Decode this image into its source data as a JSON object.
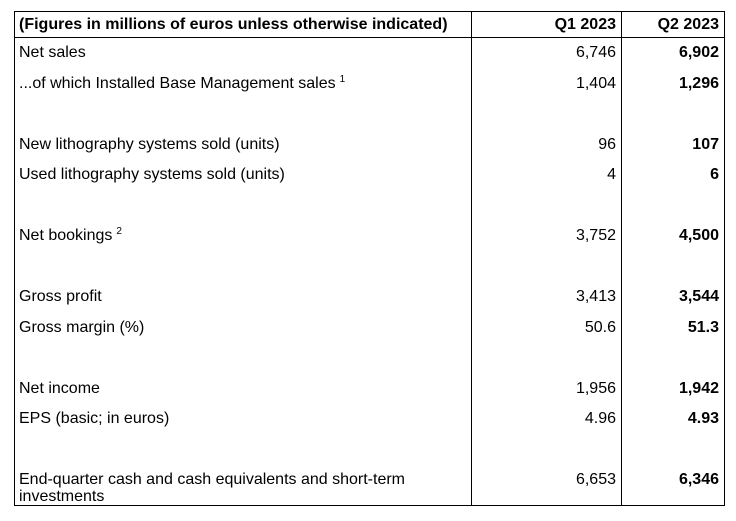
{
  "table": {
    "header": {
      "label": "(Figures in millions of euros unless otherwise indicated)",
      "q1": "Q1 2023",
      "q2": "Q2 2023"
    },
    "rows": [
      {
        "label": "Net sales",
        "footnote": "",
        "q1": "6,746",
        "q2": "6,902"
      },
      {
        "label": "...of which Installed Base Management sales",
        "footnote": "1",
        "q1": "1,404",
        "q2": "1,296"
      },
      {
        "label": "New lithography systems sold (units)",
        "footnote": "",
        "q1": "96",
        "q2": "107"
      },
      {
        "label": "Used lithography systems sold (units)",
        "footnote": "",
        "q1": "4",
        "q2": "6"
      },
      {
        "label": "Net bookings",
        "footnote": "2",
        "q1": "3,752",
        "q2": "4,500"
      },
      {
        "label": "Gross profit",
        "footnote": "",
        "q1": "3,413",
        "q2": "3,544"
      },
      {
        "label": "Gross margin (%)",
        "footnote": "",
        "q1": "50.6",
        "q2": "51.3"
      },
      {
        "label": "Net income",
        "footnote": "",
        "q1": "1,956",
        "q2": "1,942"
      },
      {
        "label": "EPS (basic; in euros)",
        "footnote": "",
        "q1": "4.96",
        "q2": "4.93"
      },
      {
        "label": "End-quarter cash and cash equivalents and short-term investments",
        "footnote": "",
        "q1": "6,653",
        "q2": "6,346"
      }
    ]
  }
}
